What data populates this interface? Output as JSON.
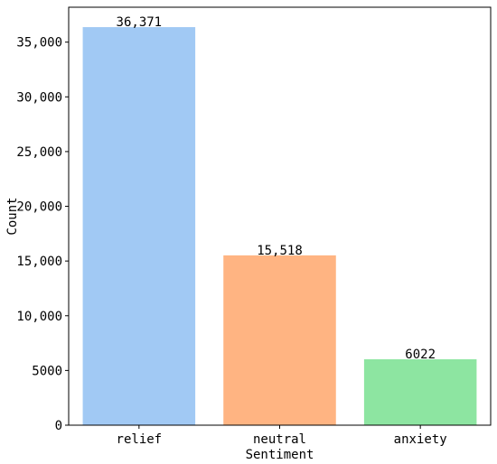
{
  "chart_data": {
    "type": "bar",
    "xlabel": "Sentiment",
    "ylabel": "Count",
    "categories": [
      "relief",
      "neutral",
      "anxiety"
    ],
    "values": [
      36371,
      15518,
      6022
    ],
    "value_labels": [
      "36,371",
      "15,518",
      "6022"
    ],
    "colors": [
      "#a1c9f4",
      "#ffb482",
      "#8de5a1"
    ],
    "ylim": [
      0,
      38190
    ],
    "yticks": [
      0,
      5000,
      10000,
      15000,
      20000,
      25000,
      30000,
      35000
    ],
    "ytick_labels": [
      "0",
      "5000",
      "10,000",
      "15,000",
      "20,000",
      "25,000",
      "30,000",
      "35,000"
    ],
    "grid": false,
    "legend": "none"
  }
}
